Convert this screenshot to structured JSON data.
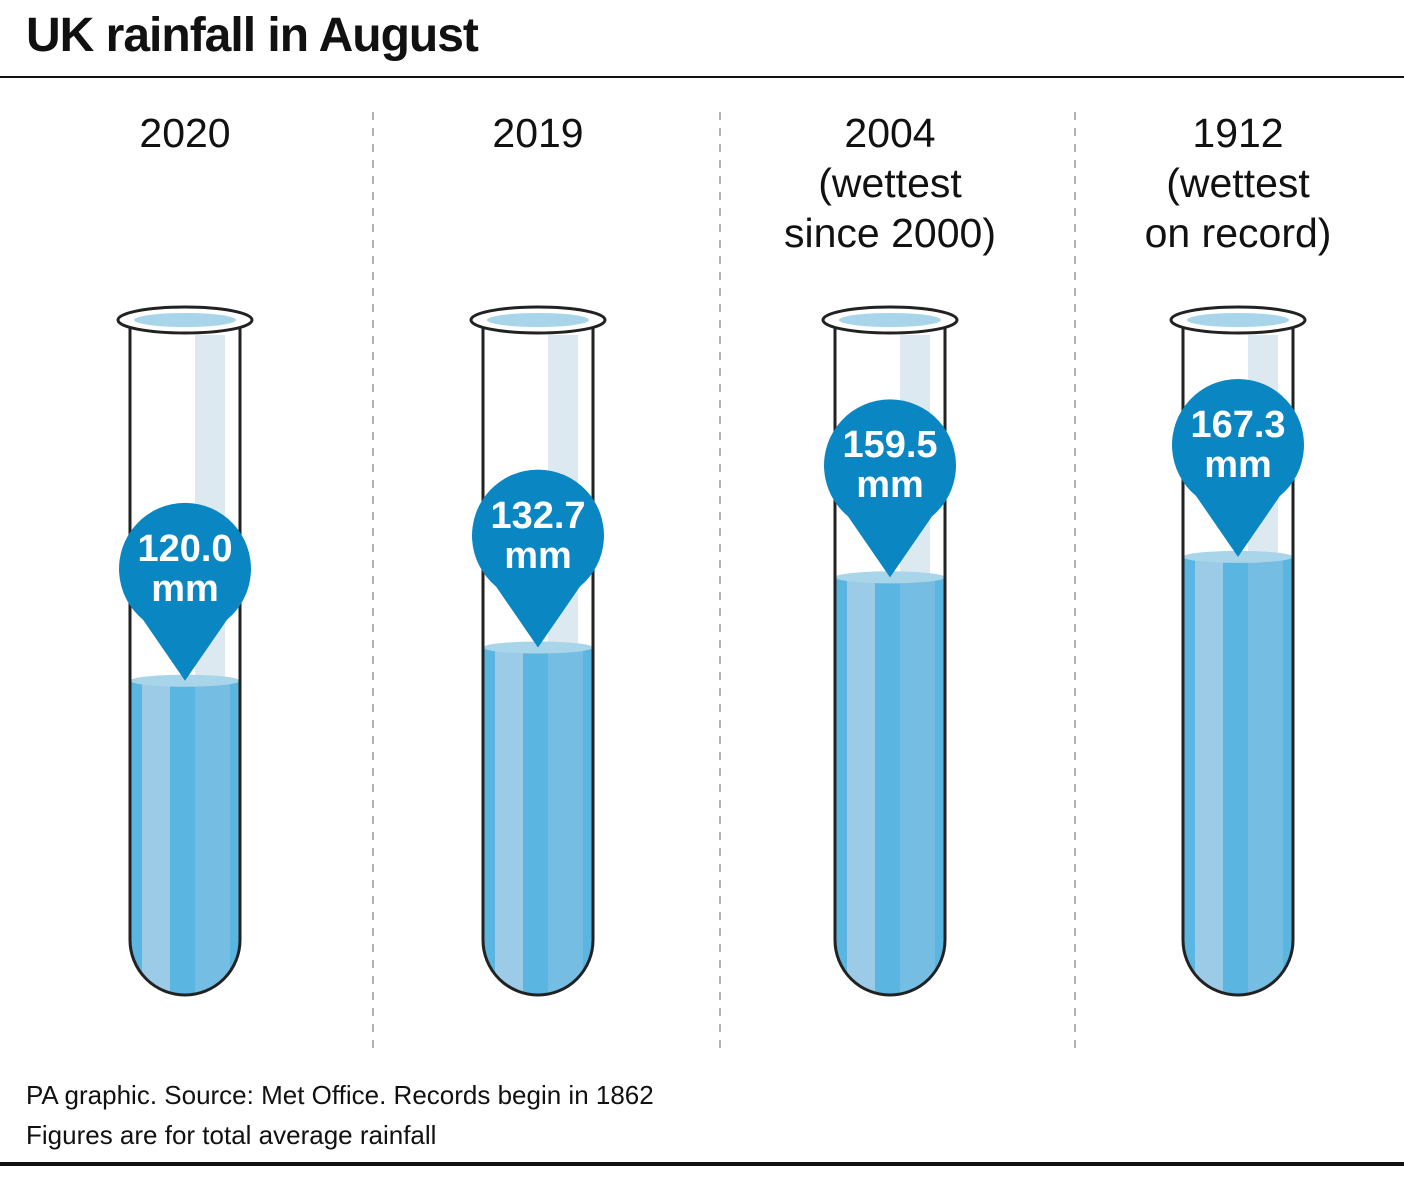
{
  "chart_data": {
    "type": "bar",
    "title": "UK rainfall in August",
    "categories": [
      "2020",
      "2019",
      "2004\n(wettest\nsince 2000)",
      "1912\n(wettest\non record)"
    ],
    "values": [
      120.0,
      132.7,
      159.5,
      167.3
    ],
    "value_labels": [
      "120.0\nmm",
      "132.7\nmm",
      "159.5\nmm",
      "167.3\nmm"
    ],
    "color": "#5ab5e0",
    "label_color": "#0a87c2",
    "ylim": [
      0,
      257
    ],
    "source": "PA graphic. Source: Met Office. Records begin in 1862",
    "note": "Figures are for total average rainfall"
  }
}
